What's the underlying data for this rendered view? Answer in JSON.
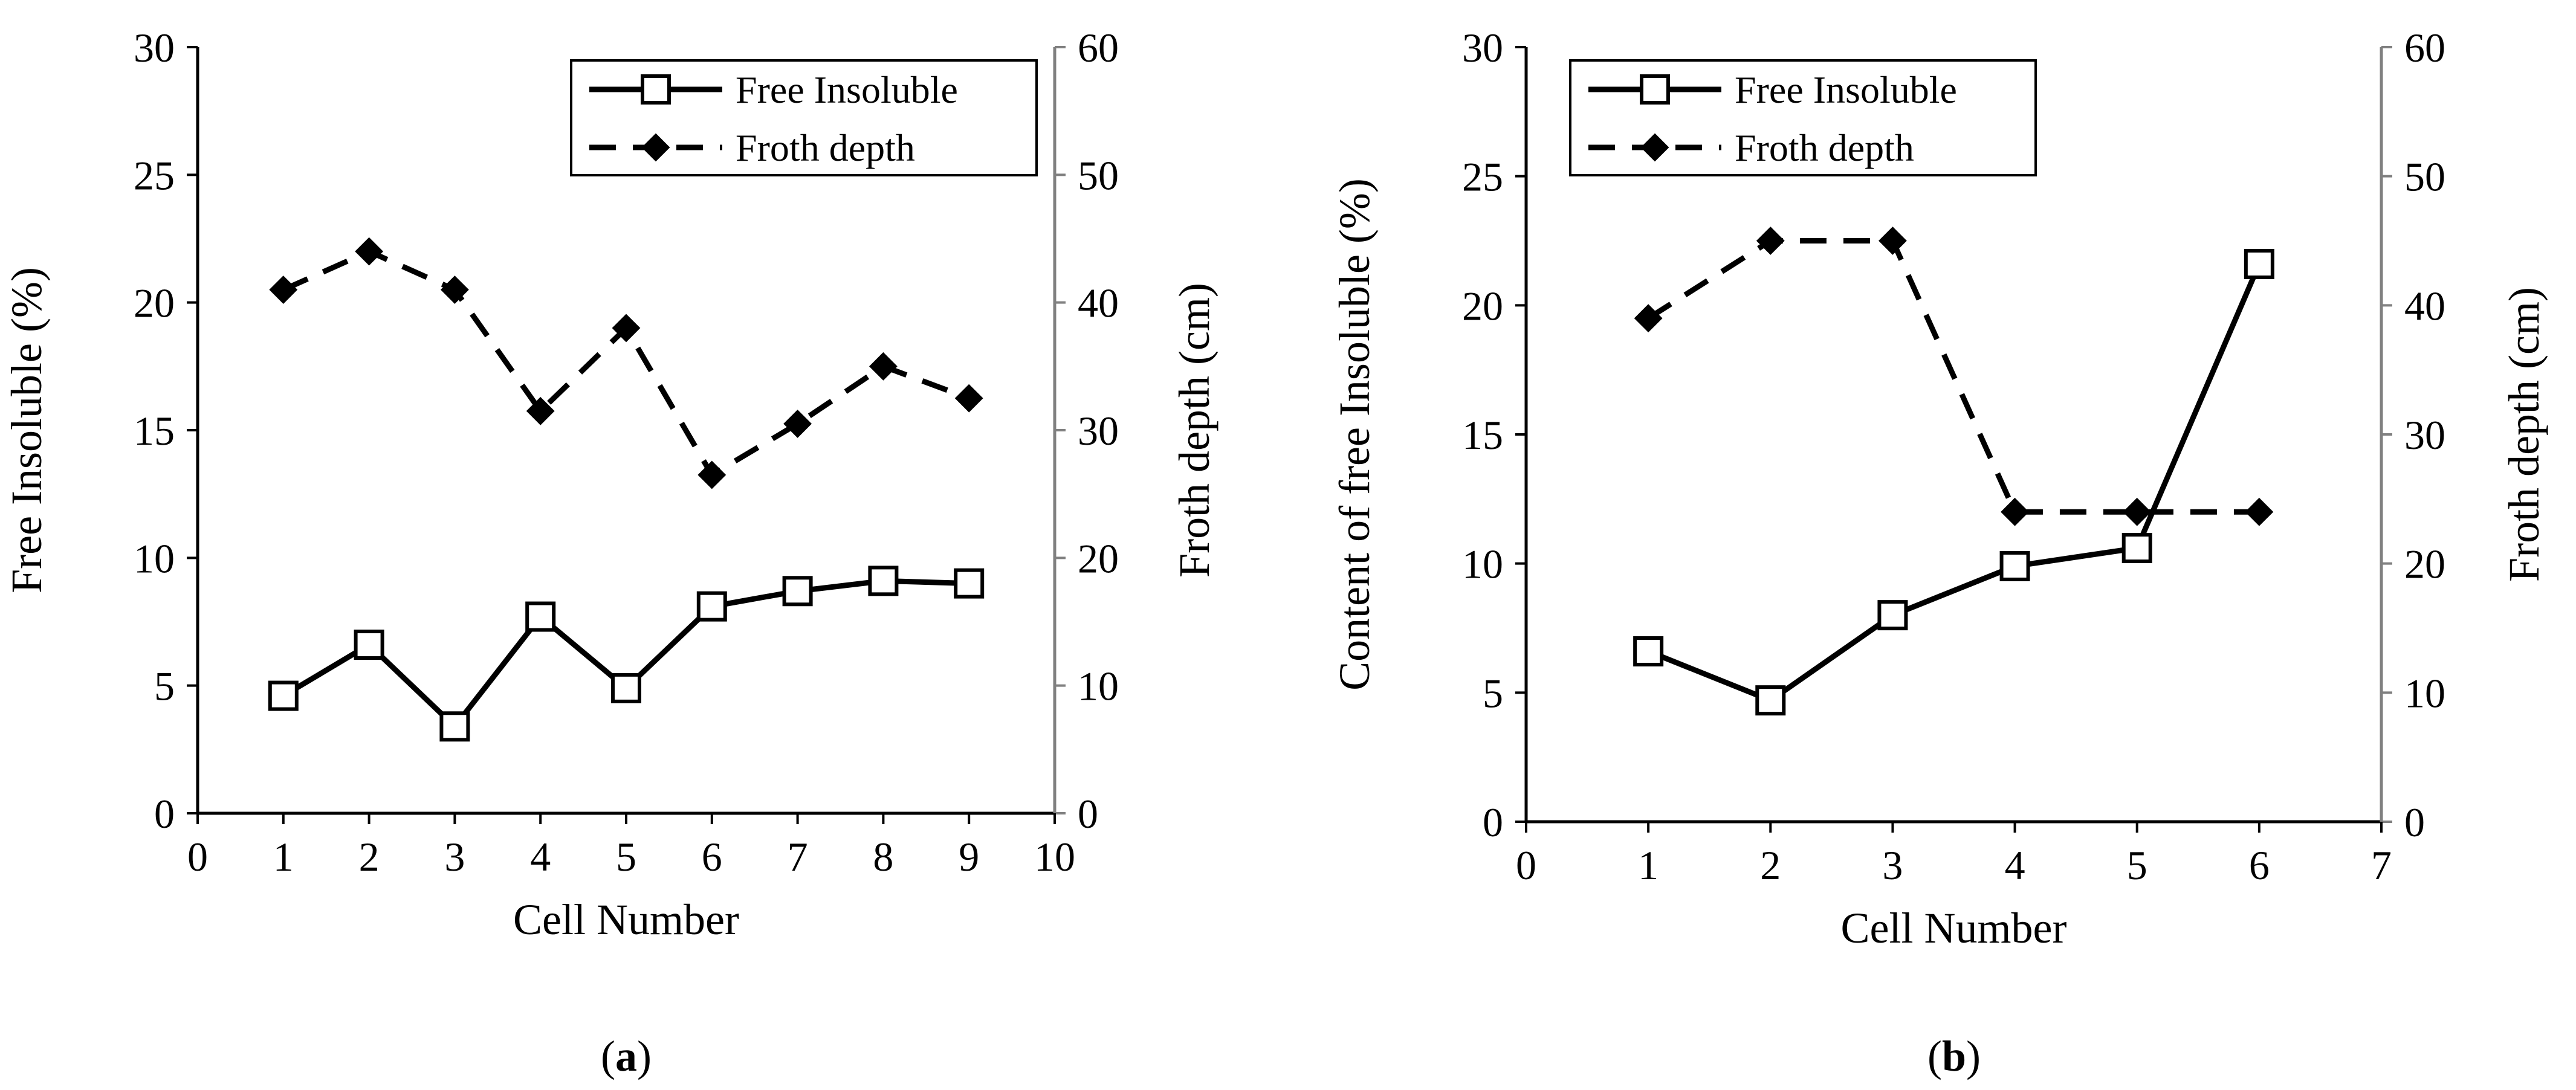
{
  "chart_data": [
    {
      "type": "line",
      "caption_letter": "a",
      "xlabel": "Cell Number",
      "ylabel": "Free Insoluble (%)",
      "y2label": "Froth depth (cm)",
      "xlim": [
        0,
        10
      ],
      "ylim": [
        0,
        30
      ],
      "y2lim": [
        0,
        60
      ],
      "x_ticks": [
        0,
        1,
        2,
        3,
        4,
        5,
        6,
        7,
        8,
        9,
        10
      ],
      "y_ticks": [
        0,
        5,
        10,
        15,
        20,
        25,
        30
      ],
      "y2_ticks": [
        0,
        10,
        20,
        30,
        40,
        50,
        60
      ],
      "legend_position": "top-right",
      "series": [
        {
          "name": "Free Insoluble",
          "axis": "left",
          "style": "solid",
          "marker": "square",
          "x": [
            1,
            2,
            3,
            4,
            5,
            6,
            7,
            8,
            9
          ],
          "values": [
            4.6,
            6.6,
            3.4,
            7.7,
            4.9,
            8.1,
            8.7,
            9.1,
            9.0
          ]
        },
        {
          "name": "Froth depth",
          "axis": "right",
          "style": "dashed",
          "marker": "diamond",
          "x": [
            1,
            2,
            3,
            4,
            5,
            6,
            7,
            8,
            9
          ],
          "values": [
            41,
            44,
            41,
            31.5,
            38,
            26.5,
            30.5,
            35,
            32.5
          ]
        }
      ]
    },
    {
      "type": "line",
      "caption_letter": "b",
      "xlabel": "Cell Number",
      "ylabel": "Content of free Insoluble (%)",
      "y2label": "Froth depth (cm)",
      "xlim": [
        0,
        7
      ],
      "ylim": [
        0,
        30
      ],
      "y2lim": [
        0,
        60
      ],
      "x_ticks": [
        0,
        1,
        2,
        3,
        4,
        5,
        6,
        7
      ],
      "y_ticks": [
        0,
        5,
        10,
        15,
        20,
        25,
        30
      ],
      "y2_ticks": [
        0,
        10,
        20,
        30,
        40,
        50,
        60
      ],
      "legend_position": "top-left",
      "series": [
        {
          "name": "Free Insoluble",
          "axis": "left",
          "style": "solid",
          "marker": "square",
          "x": [
            1,
            2,
            3,
            4,
            5,
            6
          ],
          "values": [
            6.6,
            4.7,
            8.0,
            9.9,
            10.6,
            21.6
          ]
        },
        {
          "name": "Froth depth",
          "axis": "right",
          "style": "dashed",
          "marker": "diamond",
          "x": [
            1,
            2,
            3,
            4,
            5,
            6
          ],
          "values": [
            39,
            45,
            45,
            24,
            24,
            24
          ]
        }
      ]
    }
  ]
}
